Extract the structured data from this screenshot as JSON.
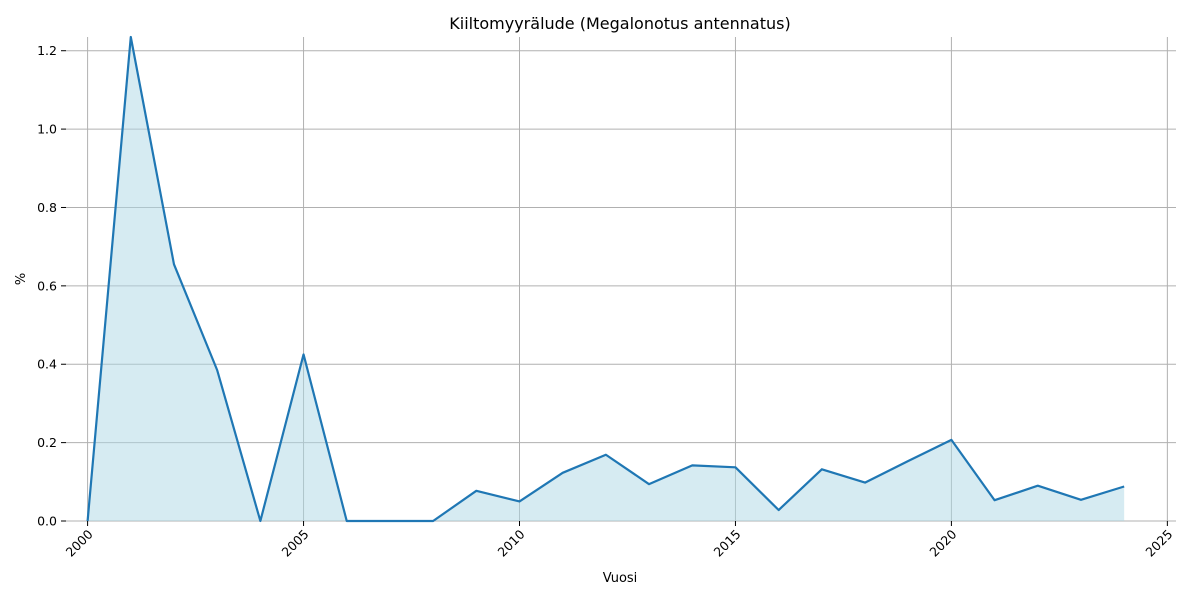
{
  "chart_data": {
    "type": "area",
    "title": "Kiiltomyyrälude (Megalonotus antennatus)",
    "xlabel": "Vuosi",
    "ylabel": "%",
    "xlim": [
      1999.5,
      2025.2
    ],
    "ylim": [
      0,
      1.235
    ],
    "xticks": [
      2000,
      2005,
      2010,
      2015,
      2020,
      2025
    ],
    "yticks": [
      0.0,
      0.2,
      0.4,
      0.6,
      0.8,
      1.0,
      1.2
    ],
    "grid": true,
    "series": [
      {
        "x": [
          2000,
          2001,
          2002,
          2003,
          2004,
          2005,
          2006,
          2007,
          2008,
          2009,
          2010,
          2011,
          2012,
          2013,
          2014,
          2015,
          2016,
          2017,
          2018,
          2019,
          2020,
          2021,
          2022,
          2023,
          2024
        ],
        "y": [
          0.0,
          1.235,
          0.655,
          0.385,
          0.0,
          0.425,
          0.0,
          0.0,
          0.0,
          0.077,
          0.05,
          0.123,
          0.169,
          0.094,
          0.142,
          0.137,
          0.028,
          0.132,
          0.098,
          0.153,
          0.207,
          0.053,
          0.09,
          0.054,
          0.088
        ]
      }
    ],
    "colors": {
      "line": "#1f77b4",
      "fill": "#add8e6",
      "grid": "#b0b0b0"
    }
  }
}
